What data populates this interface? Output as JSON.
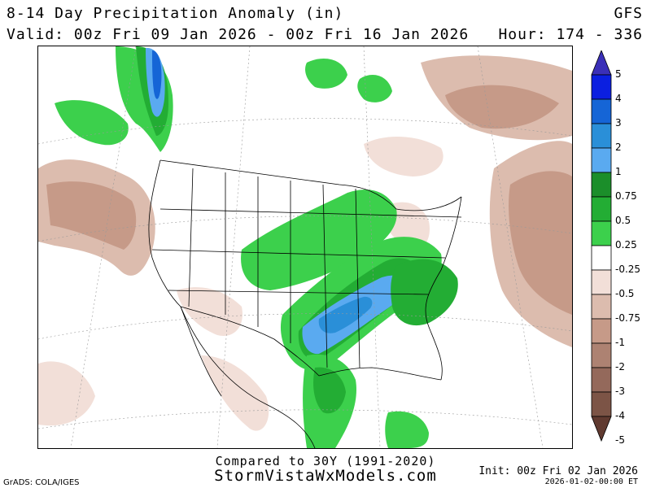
{
  "header": {
    "title": "8-14 Day Precipitation Anomaly (in)",
    "model": "GFS",
    "valid": "Valid: 00z Fri 09 Jan 2026 - 00z Fri 16 Jan 2026",
    "hour": "Hour: 174 - 336"
  },
  "colorbar": {
    "labels": [
      "5",
      "4",
      "3",
      "2",
      "1",
      "0.75",
      "0.5",
      "0.25",
      "-0.25",
      "-0.5",
      "-0.75",
      "-1",
      "-2",
      "-3",
      "-4",
      "-5"
    ],
    "colors": [
      "#3a2fb8",
      "#0b1fe0",
      "#1565d6",
      "#2a8fd8",
      "#5aaaf0",
      "#1b8e2a",
      "#23ad34",
      "#3cd04c",
      "#ffffff",
      "#f2dfd8",
      "#dcbcae",
      "#c69a88",
      "#ad8272",
      "#94695b",
      "#7c5446",
      "#603a30"
    ]
  },
  "footer": {
    "compared": "Compared to 30Y (1991-2020)",
    "site": "StormVistaWxModels.com",
    "init": "Init: 00z Fri 02 Jan 2026",
    "stamp": "2026-01-02-00:00 ET",
    "grads": "GrADS: COLA/IGES"
  }
}
